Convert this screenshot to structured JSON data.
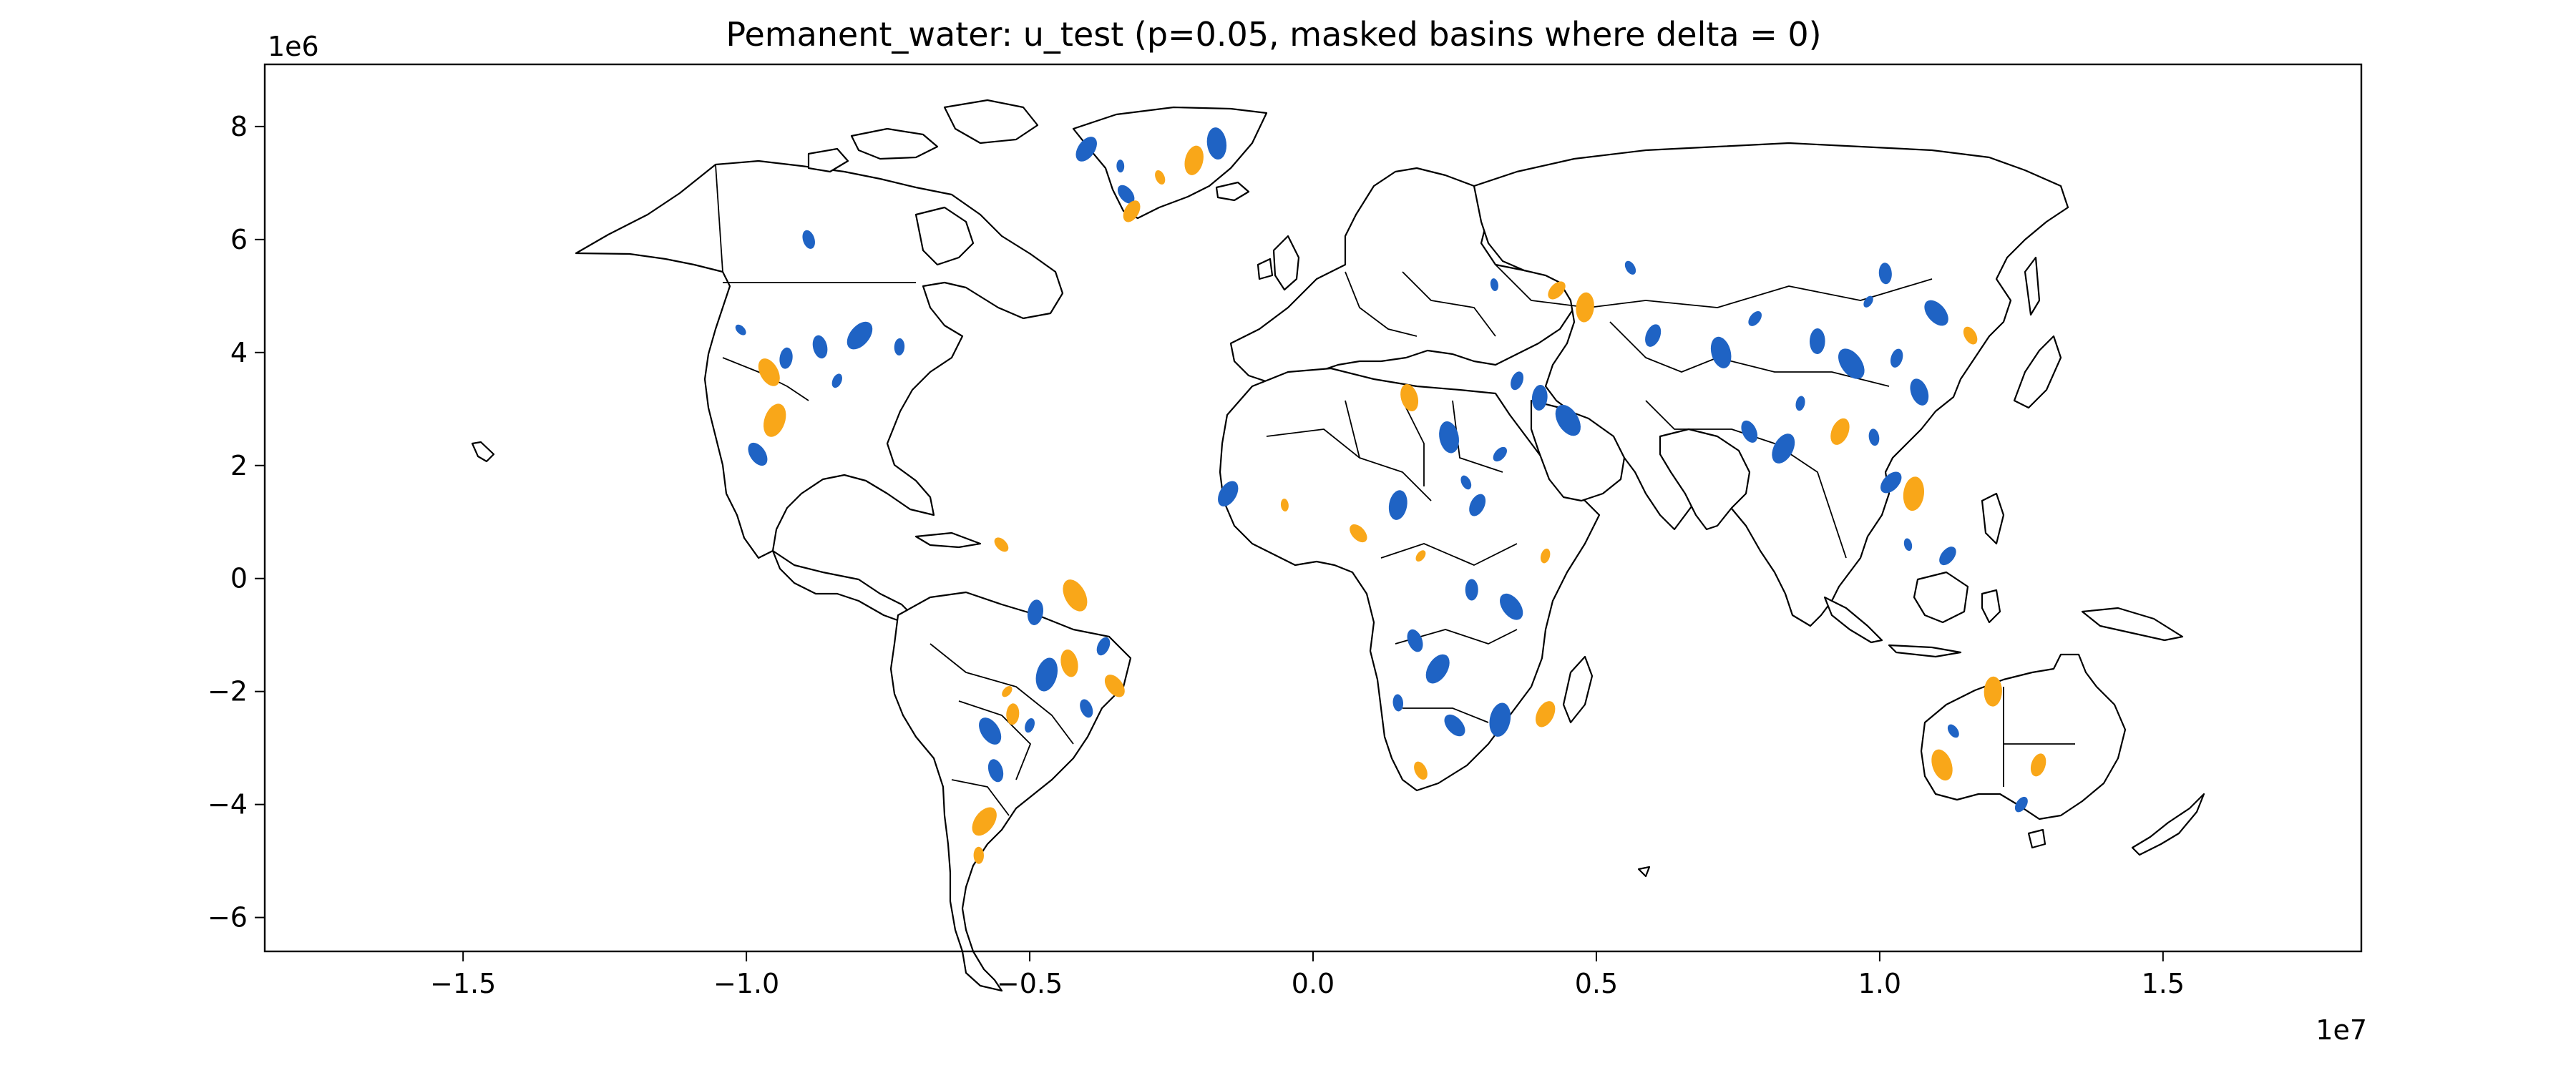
{
  "chart_data": {
    "type": "map",
    "title": "Pemanent_water: u_test (p=0.05, masked basins where delta = 0)",
    "x_offset_label": "1e7",
    "y_offset_label": "1e6",
    "xlim": [
      -18500000,
      18500000
    ],
    "ylim": [
      -6600000,
      9100000
    ],
    "x_ticks": [
      {
        "value": -15000000,
        "label": "−1.5"
      },
      {
        "value": -10000000,
        "label": "−1.0"
      },
      {
        "value": -5000000,
        "label": "−0.5"
      },
      {
        "value": 0,
        "label": "0.0"
      },
      {
        "value": 5000000,
        "label": "0.5"
      },
      {
        "value": 10000000,
        "label": "1.0"
      },
      {
        "value": 15000000,
        "label": "1.5"
      }
    ],
    "y_ticks": [
      {
        "value": -6000000,
        "label": "−6"
      },
      {
        "value": -4000000,
        "label": "−4"
      },
      {
        "value": -2000000,
        "label": "−2"
      },
      {
        "value": 0,
        "label": "0"
      },
      {
        "value": 2000000,
        "label": "2"
      },
      {
        "value": 4000000,
        "label": "4"
      },
      {
        "value": 6000000,
        "label": "6"
      },
      {
        "value": 8000000,
        "label": "8"
      }
    ],
    "grid": false,
    "colors": {
      "decrease": "#1f63c4",
      "increase": "#f9a719",
      "land": "#ffffff",
      "outline": "#000000"
    },
    "basins": [
      {
        "x": -10100000,
        "y": 4400000,
        "c": "decrease"
      },
      {
        "x": -9300000,
        "y": 3900000,
        "c": "decrease"
      },
      {
        "x": -9600000,
        "y": 3650000,
        "c": "increase"
      },
      {
        "x": -8400000,
        "y": 3500000,
        "c": "decrease"
      },
      {
        "x": -8700000,
        "y": 4100000,
        "c": "decrease"
      },
      {
        "x": -8000000,
        "y": 4300000,
        "c": "decrease"
      },
      {
        "x": -7300000,
        "y": 4100000,
        "c": "decrease"
      },
      {
        "x": -9800000,
        "y": 2200000,
        "c": "decrease"
      },
      {
        "x": -9500000,
        "y": 2800000,
        "c": "increase"
      },
      {
        "x": -8900000,
        "y": 6000000,
        "c": "decrease"
      },
      {
        "x": -4000000,
        "y": 7600000,
        "c": "decrease"
      },
      {
        "x": -3400000,
        "y": 7300000,
        "c": "decrease"
      },
      {
        "x": -3300000,
        "y": 6800000,
        "c": "decrease"
      },
      {
        "x": -2100000,
        "y": 7400000,
        "c": "increase"
      },
      {
        "x": -2700000,
        "y": 7100000,
        "c": "increase"
      },
      {
        "x": -3200000,
        "y": 6500000,
        "c": "increase"
      },
      {
        "x": -1700000,
        "y": 7700000,
        "c": "decrease"
      },
      {
        "x": -5500000,
        "y": 600000,
        "c": "increase"
      },
      {
        "x": -4900000,
        "y": -600000,
        "c": "decrease"
      },
      {
        "x": -4200000,
        "y": -300000,
        "c": "increase"
      },
      {
        "x": -3700000,
        "y": -1200000,
        "c": "decrease"
      },
      {
        "x": -4300000,
        "y": -1500000,
        "c": "increase"
      },
      {
        "x": -5400000,
        "y": -2000000,
        "c": "increase"
      },
      {
        "x": -5300000,
        "y": -2400000,
        "c": "increase"
      },
      {
        "x": -5700000,
        "y": -2700000,
        "c": "decrease"
      },
      {
        "x": -5000000,
        "y": -2600000,
        "c": "decrease"
      },
      {
        "x": -5600000,
        "y": -3400000,
        "c": "decrease"
      },
      {
        "x": -5800000,
        "y": -4300000,
        "c": "increase"
      },
      {
        "x": -5900000,
        "y": -4900000,
        "c": "increase"
      },
      {
        "x": -3500000,
        "y": -1900000,
        "c": "increase"
      },
      {
        "x": -4700000,
        "y": -1700000,
        "c": "decrease"
      },
      {
        "x": -4000000,
        "y": -2300000,
        "c": "decrease"
      },
      {
        "x": -1500000,
        "y": 1500000,
        "c": "decrease"
      },
      {
        "x": -500000,
        "y": 1300000,
        "c": "increase"
      },
      {
        "x": 800000,
        "y": 800000,
        "c": "increase"
      },
      {
        "x": 1500000,
        "y": 1300000,
        "c": "decrease"
      },
      {
        "x": 2700000,
        "y": 1700000,
        "c": "decrease"
      },
      {
        "x": 2900000,
        "y": 1300000,
        "c": "decrease"
      },
      {
        "x": 2400000,
        "y": 2500000,
        "c": "decrease"
      },
      {
        "x": 3300000,
        "y": 2200000,
        "c": "decrease"
      },
      {
        "x": 4000000,
        "y": 3200000,
        "c": "decrease"
      },
      {
        "x": 4500000,
        "y": 2800000,
        "c": "decrease"
      },
      {
        "x": 3600000,
        "y": 3500000,
        "c": "decrease"
      },
      {
        "x": 1700000,
        "y": 3200000,
        "c": "increase"
      },
      {
        "x": 1900000,
        "y": 400000,
        "c": "increase"
      },
      {
        "x": 2800000,
        "y": -200000,
        "c": "decrease"
      },
      {
        "x": 3500000,
        "y": -500000,
        "c": "decrease"
      },
      {
        "x": 4100000,
        "y": 400000,
        "c": "increase"
      },
      {
        "x": 1800000,
        "y": -1100000,
        "c": "decrease"
      },
      {
        "x": 2200000,
        "y": -1600000,
        "c": "decrease"
      },
      {
        "x": 1500000,
        "y": -2200000,
        "c": "decrease"
      },
      {
        "x": 2500000,
        "y": -2600000,
        "c": "decrease"
      },
      {
        "x": 3300000,
        "y": -2500000,
        "c": "decrease"
      },
      {
        "x": 1900000,
        "y": -3400000,
        "c": "increase"
      },
      {
        "x": 4100000,
        "y": -2400000,
        "c": "increase"
      },
      {
        "x": 3200000,
        "y": 5200000,
        "c": "decrease"
      },
      {
        "x": 4300000,
        "y": 5100000,
        "c": "increase"
      },
      {
        "x": 4800000,
        "y": 4800000,
        "c": "increase"
      },
      {
        "x": 5600000,
        "y": 5500000,
        "c": "decrease"
      },
      {
        "x": 6000000,
        "y": 4300000,
        "c": "decrease"
      },
      {
        "x": 7200000,
        "y": 4000000,
        "c": "decrease"
      },
      {
        "x": 7800000,
        "y": 4600000,
        "c": "decrease"
      },
      {
        "x": 8900000,
        "y": 4200000,
        "c": "decrease"
      },
      {
        "x": 9500000,
        "y": 3800000,
        "c": "decrease"
      },
      {
        "x": 10300000,
        "y": 3900000,
        "c": "decrease"
      },
      {
        "x": 10700000,
        "y": 3300000,
        "c": "decrease"
      },
      {
        "x": 9800000,
        "y": 4900000,
        "c": "decrease"
      },
      {
        "x": 10100000,
        "y": 5400000,
        "c": "decrease"
      },
      {
        "x": 11000000,
        "y": 4700000,
        "c": "decrease"
      },
      {
        "x": 8600000,
        "y": 3100000,
        "c": "decrease"
      },
      {
        "x": 7700000,
        "y": 2600000,
        "c": "decrease"
      },
      {
        "x": 8300000,
        "y": 2300000,
        "c": "decrease"
      },
      {
        "x": 9900000,
        "y": 2500000,
        "c": "decrease"
      },
      {
        "x": 10200000,
        "y": 1700000,
        "c": "decrease"
      },
      {
        "x": 10600000,
        "y": 1500000,
        "c": "increase"
      },
      {
        "x": 11600000,
        "y": 4300000,
        "c": "increase"
      },
      {
        "x": 9300000,
        "y": 2600000,
        "c": "increase"
      },
      {
        "x": 10500000,
        "y": 600000,
        "c": "decrease"
      },
      {
        "x": 11200000,
        "y": 400000,
        "c": "decrease"
      },
      {
        "x": 12000000,
        "y": -2000000,
        "c": "increase"
      },
      {
        "x": 11300000,
        "y": -2700000,
        "c": "decrease"
      },
      {
        "x": 12800000,
        "y": -3300000,
        "c": "increase"
      },
      {
        "x": 11100000,
        "y": -3300000,
        "c": "increase"
      },
      {
        "x": 12500000,
        "y": -4000000,
        "c": "decrease"
      }
    ]
  }
}
